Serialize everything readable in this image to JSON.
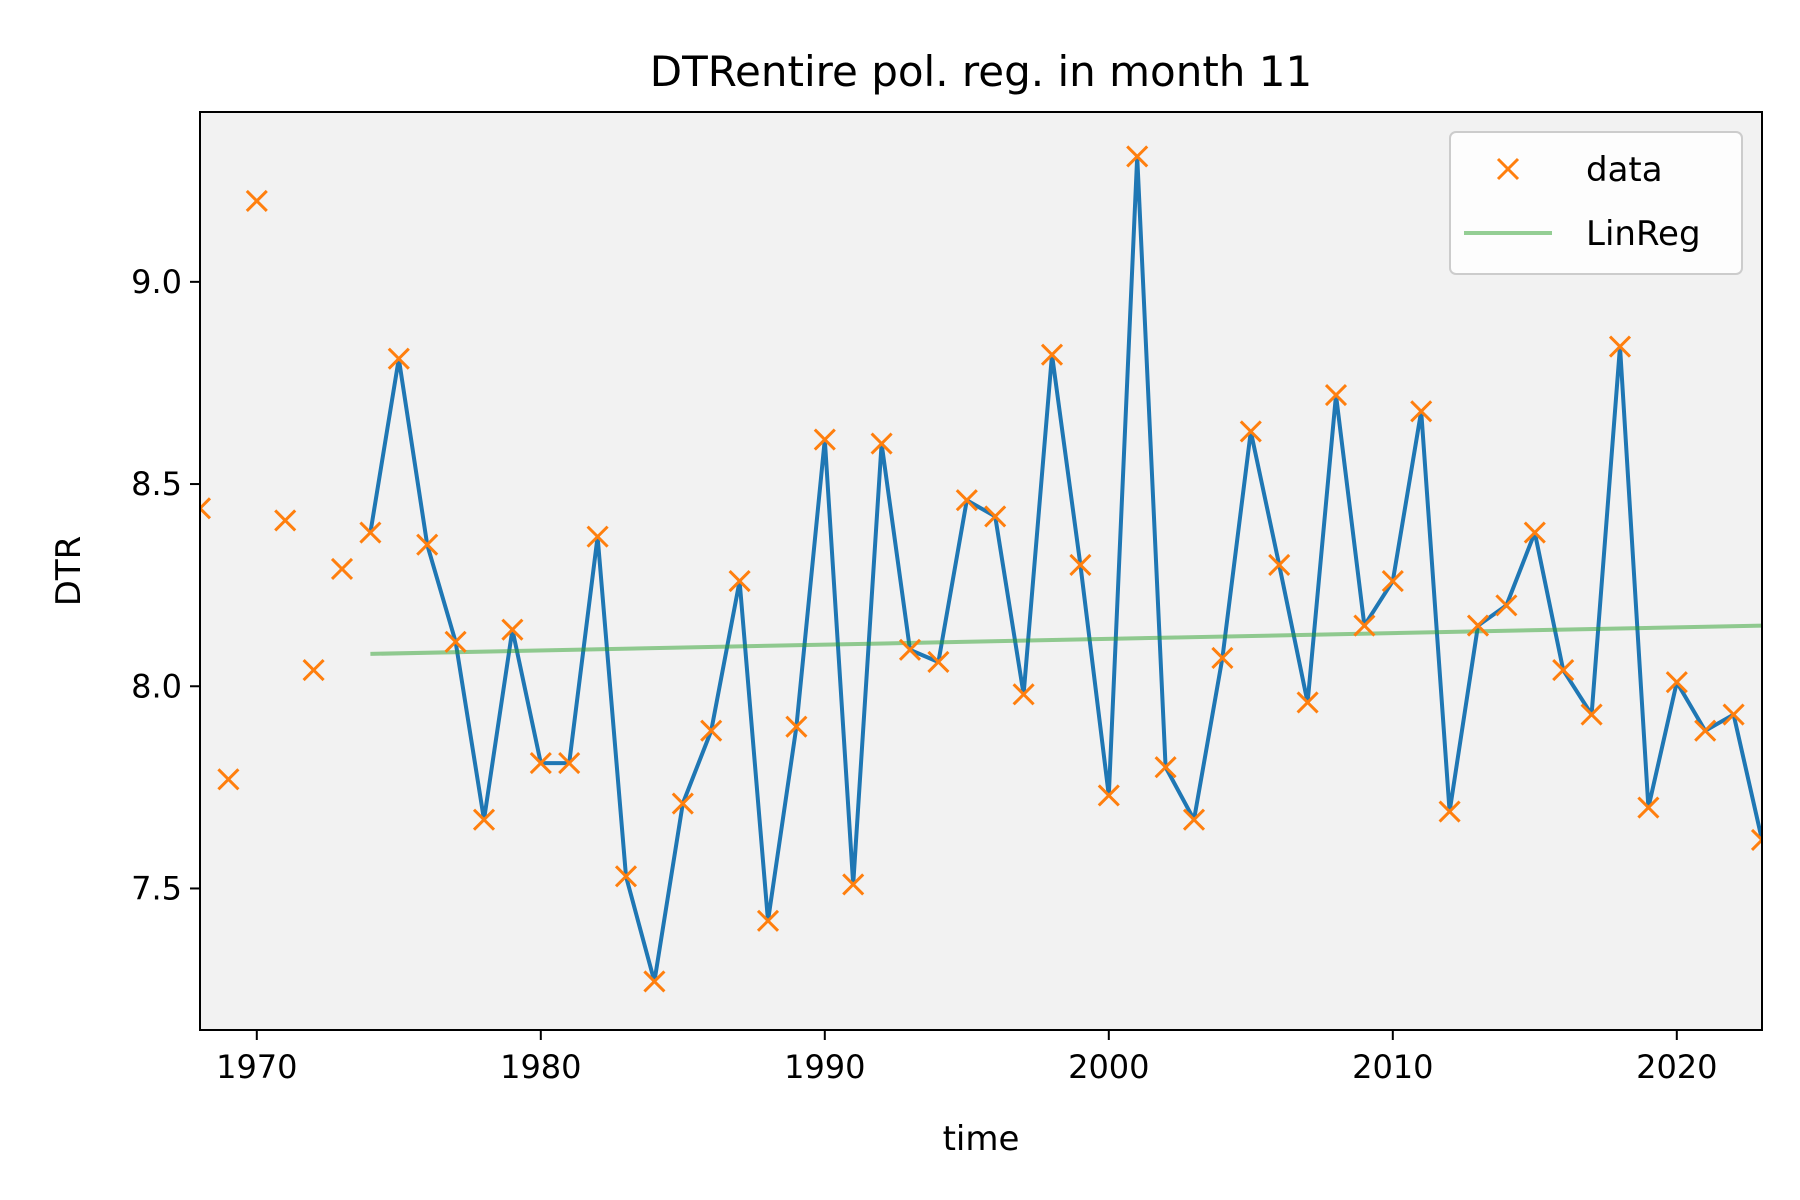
{
  "chart_data": {
    "type": "line",
    "title": "DTRentire pol. reg. in month 11",
    "xlabel": "time",
    "ylabel": "DTR",
    "xlim": [
      1968,
      2023
    ],
    "ylim": [
      7.15,
      9.42
    ],
    "xticks": [
      1970,
      1980,
      1990,
      2000,
      2010,
      2020
    ],
    "yticks": [
      7.5,
      8.0,
      8.5,
      9.0
    ],
    "ytick_labels": [
      "7.5",
      "8.0",
      "8.5",
      "9.0"
    ],
    "grid": false,
    "legend_position": "top-right",
    "colors": {
      "line": "#1f77b4",
      "markers": "#ff7f0e",
      "linreg": "#2ca02c",
      "plot_bg": "#f2f2f2"
    },
    "series": [
      {
        "name": "data",
        "style": "markers-x",
        "x": [
          1968,
          1969,
          1970,
          1971,
          1972,
          1973,
          1974,
          1975,
          1976,
          1977,
          1978,
          1979,
          1980,
          1981,
          1982,
          1983,
          1984,
          1985,
          1986,
          1987,
          1988,
          1989,
          1990,
          1991,
          1992,
          1993,
          1994,
          1995,
          1996,
          1997,
          1998,
          1999,
          2000,
          2001,
          2002,
          2003,
          2004,
          2005,
          2006,
          2007,
          2008,
          2009,
          2010,
          2011,
          2012,
          2013,
          2014,
          2015,
          2016,
          2017,
          2018,
          2019,
          2020,
          2021,
          2022,
          2023
        ],
        "y": [
          8.44,
          7.77,
          9.2,
          8.41,
          8.04,
          8.29,
          8.38,
          8.81,
          8.35,
          8.11,
          7.67,
          8.14,
          7.81,
          7.81,
          8.37,
          7.53,
          7.27,
          7.71,
          7.89,
          8.26,
          7.42,
          7.9,
          8.61,
          7.51,
          8.6,
          8.09,
          8.06,
          8.46,
          8.42,
          7.98,
          8.82,
          8.3,
          7.73,
          9.31,
          7.8,
          7.67,
          8.07,
          8.63,
          8.3,
          7.96,
          8.72,
          8.15,
          8.26,
          8.68,
          7.69,
          8.15,
          8.2,
          8.38,
          8.04,
          7.93,
          8.84,
          7.7,
          8.01,
          7.89,
          7.93,
          7.62
        ]
      },
      {
        "name": "",
        "style": "line",
        "x_start": 1974,
        "x_end": 2023
      },
      {
        "name": "LinReg",
        "style": "line",
        "x": [
          1974,
          2023
        ],
        "y": [
          8.08,
          8.15
        ]
      }
    ]
  }
}
